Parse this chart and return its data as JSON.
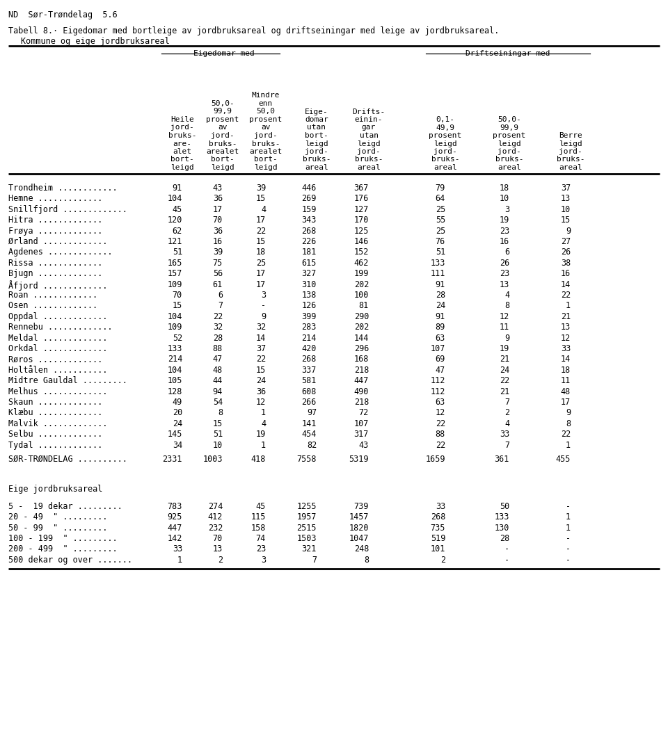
{
  "page_header": "ND  Sør-Trøndelag  5.6",
  "title_line1": "Tabell 8.· Eigedomar med bortleige av jordbruksareal og driftseiningar med leige av jordbruksareal.",
  "title_line2": "Kommune og eige jordbruksareal",
  "group1_label": "Eigedomar med",
  "group2_label": "Driftseiningar med",
  "col_header_lines": [
    [
      "Heile",
      "jord-",
      "bruks-",
      "are-",
      "alet",
      "bort-",
      "leigd"
    ],
    [
      "50,0-",
      "99,9",
      "prosent",
      "av",
      "jord-",
      "bruks-",
      "arealet",
      "bort-",
      "leigd"
    ],
    [
      "Mindre",
      "enn",
      "50,0",
      "prosent",
      "av",
      "jord-",
      "bruks-",
      "arealet",
      "bort-",
      "leigd"
    ],
    [
      "Eige-",
      "domar",
      "utan",
      "bort-",
      "leigd",
      "jord-",
      "bruks-",
      "areal"
    ],
    [
      "Drifts-",
      "einin-",
      "gar",
      "utan",
      "leigd",
      "jord-",
      "bruks-",
      "areal"
    ],
    [
      "0,1-",
      "49,9",
      "prosent",
      "leigd",
      "jord-",
      "bruks-",
      "areal"
    ],
    [
      "50,0-",
      "99,9",
      "prosent",
      "leigd",
      "jord-",
      "bruks-",
      "areal"
    ],
    [
      "Berre",
      "leigd",
      "jord-",
      "bruks-",
      "areal"
    ]
  ],
  "kommune_rows": [
    [
      "Trondheim",
      91,
      43,
      39,
      446,
      367,
      79,
      18,
      37
    ],
    [
      "Hemne",
      104,
      36,
      15,
      269,
      176,
      64,
      10,
      13
    ],
    [
      "Snillfjord",
      45,
      17,
      4,
      159,
      127,
      25,
      3,
      10
    ],
    [
      "Hitra",
      120,
      70,
      17,
      343,
      170,
      55,
      19,
      15
    ],
    [
      "Frøya",
      62,
      36,
      22,
      268,
      125,
      25,
      23,
      9
    ],
    [
      "Ørland",
      121,
      16,
      15,
      226,
      146,
      76,
      16,
      27
    ],
    [
      "Agdenes",
      51,
      39,
      18,
      181,
      152,
      51,
      6,
      26
    ],
    [
      "Rissa",
      165,
      75,
      25,
      615,
      462,
      133,
      26,
      38
    ],
    [
      "Bjugn",
      157,
      56,
      17,
      327,
      199,
      111,
      23,
      16
    ],
    [
      "Åfjord",
      109,
      61,
      17,
      310,
      202,
      91,
      13,
      14
    ],
    [
      "Roan",
      70,
      6,
      3,
      138,
      100,
      28,
      4,
      22
    ],
    [
      "Osen",
      15,
      7,
      "-",
      126,
      81,
      24,
      8,
      1
    ],
    [
      "Oppdal",
      104,
      22,
      9,
      399,
      290,
      91,
      12,
      21
    ],
    [
      "Rennebu",
      109,
      32,
      32,
      283,
      202,
      89,
      11,
      13
    ],
    [
      "Meldal",
      52,
      28,
      14,
      214,
      144,
      63,
      9,
      12
    ],
    [
      "Orkdal",
      133,
      88,
      37,
      420,
      296,
      107,
      19,
      33
    ],
    [
      "Røros",
      214,
      47,
      22,
      268,
      168,
      69,
      21,
      14
    ],
    [
      "Holtålen",
      104,
      48,
      15,
      337,
      218,
      47,
      24,
      18
    ],
    [
      "Midtre Gauldal",
      105,
      44,
      24,
      581,
      447,
      112,
      22,
      11
    ],
    [
      "Melhus",
      128,
      94,
      36,
      608,
      490,
      112,
      21,
      48
    ],
    [
      "Skaun",
      49,
      54,
      12,
      266,
      218,
      63,
      7,
      17
    ],
    [
      "Klæbu",
      20,
      8,
      1,
      97,
      72,
      12,
      2,
      9
    ],
    [
      "Malvik",
      24,
      15,
      4,
      141,
      107,
      22,
      4,
      8
    ],
    [
      "Selbu",
      145,
      51,
      19,
      454,
      317,
      88,
      33,
      22
    ],
    [
      "Tydal",
      34,
      10,
      1,
      82,
      43,
      22,
      7,
      1
    ]
  ],
  "total_row": [
    "SØR-TRØNDELAG",
    2331,
    1003,
    418,
    7558,
    5319,
    1659,
    361,
    455
  ],
  "eige_label": "Eige jordbruksareal",
  "eige_rows": [
    [
      "5 -  19 dekar",
      783,
      274,
      45,
      1255,
      739,
      33,
      50,
      "-"
    ],
    [
      "20 - 49  \"",
      925,
      412,
      115,
      1957,
      1457,
      268,
      133,
      1
    ],
    [
      "50 - 99  \"",
      447,
      232,
      158,
      2515,
      1820,
      735,
      130,
      1
    ],
    [
      "100 - 199  \"",
      142,
      70,
      74,
      1503,
      1047,
      519,
      28,
      "-"
    ],
    [
      "200 - 499  \"",
      33,
      13,
      23,
      321,
      248,
      101,
      "-",
      "-"
    ],
    [
      "500 dekar og over",
      1,
      2,
      3,
      7,
      8,
      2,
      "-",
      "-"
    ]
  ],
  "dots_kommune": [
    " ............",
    " .............",
    " .............",
    " .............",
    " .............",
    " .............",
    " .............",
    " .............",
    " .............",
    " .............",
    " .............",
    " .............",
    " .............",
    " .............",
    " .............",
    " .............",
    " .............",
    " ...........",
    " .........",
    " .............",
    " .............",
    " .............",
    " .............",
    " .............",
    " ............."
  ],
  "dots_total": " ..........",
  "dots_eige": [
    " .........",
    " .........",
    " .........",
    " .........",
    " .........",
    " ......."
  ]
}
